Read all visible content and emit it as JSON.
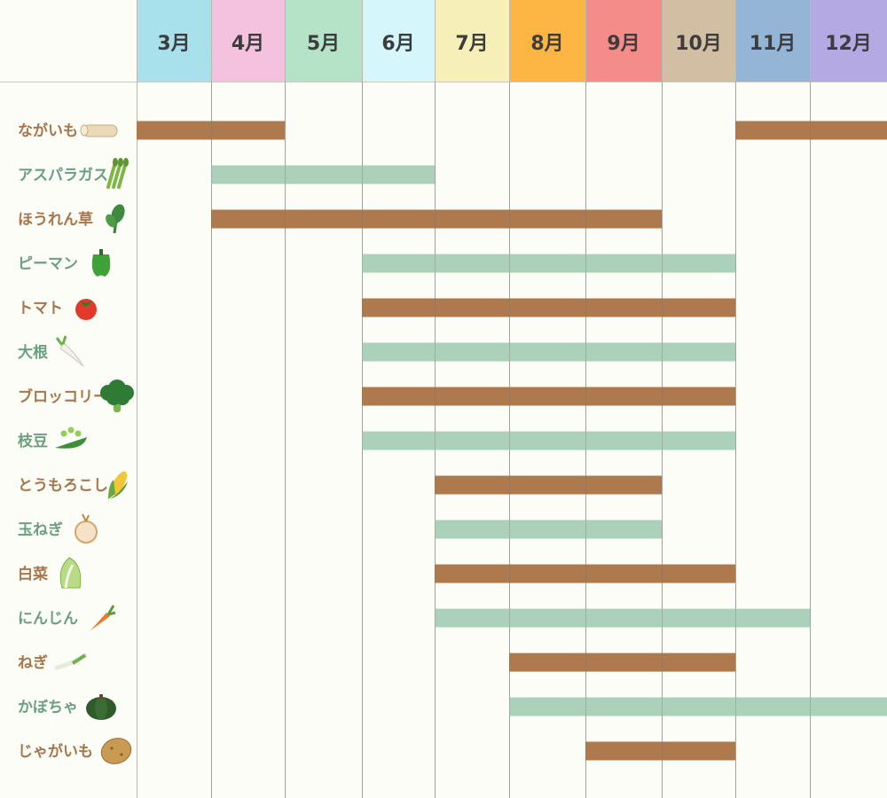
{
  "chart_data": {
    "type": "table",
    "months": [
      "3月",
      "4月",
      "5月",
      "6月",
      "7月",
      "8月",
      "9月",
      "10月",
      "11月",
      "12月"
    ],
    "month_colors": [
      "#a8e0ec",
      "#f4c2de",
      "#b5e3c8",
      "#d5f6fb",
      "#f7efb8",
      "#fdb643",
      "#f48c8a",
      "#d2bfa3",
      "#94b5d6",
      "#b4a9e2"
    ],
    "bar_colors": [
      "#ae7a4d",
      "#acd1bb"
    ],
    "label_colors": [
      "#a9754a",
      "#6aa07f"
    ],
    "rows": [
      {
        "name": "ながいも",
        "icon": "nagaimo-icon",
        "ranges": [
          [
            3,
            4
          ],
          [
            11,
            12
          ]
        ]
      },
      {
        "name": "アスパラガス",
        "icon": "asparagus-icon",
        "ranges": [
          [
            4,
            6
          ]
        ]
      },
      {
        "name": "ほうれん草",
        "icon": "spinach-icon",
        "ranges": [
          [
            4,
            9
          ]
        ]
      },
      {
        "name": "ピーマン",
        "icon": "green-pepper-icon",
        "ranges": [
          [
            6,
            10
          ]
        ]
      },
      {
        "name": "トマト",
        "icon": "tomato-icon",
        "ranges": [
          [
            6,
            10
          ]
        ]
      },
      {
        "name": "大根",
        "icon": "daikon-icon",
        "ranges": [
          [
            6,
            10
          ]
        ]
      },
      {
        "name": "ブロッコリー",
        "icon": "broccoli-icon",
        "ranges": [
          [
            6,
            10
          ]
        ]
      },
      {
        "name": "枝豆",
        "icon": "edamame-icon",
        "ranges": [
          [
            6,
            10
          ]
        ]
      },
      {
        "name": "とうもろこし",
        "icon": "corn-icon",
        "ranges": [
          [
            7,
            9
          ]
        ]
      },
      {
        "name": "玉ねぎ",
        "icon": "onion-icon",
        "ranges": [
          [
            7,
            9
          ]
        ]
      },
      {
        "name": "白菜",
        "icon": "chinese-cabbage-icon",
        "ranges": [
          [
            7,
            10
          ]
        ]
      },
      {
        "name": "にんじん",
        "icon": "carrot-icon",
        "ranges": [
          [
            7,
            11
          ]
        ]
      },
      {
        "name": "ねぎ",
        "icon": "green-onion-icon",
        "ranges": [
          [
            8,
            10
          ]
        ]
      },
      {
        "name": "かぼちゃ",
        "icon": "pumpkin-icon",
        "ranges": [
          [
            8,
            12
          ]
        ]
      },
      {
        "name": "じゃがいも",
        "icon": "potato-icon",
        "ranges": [
          [
            9,
            10
          ]
        ]
      }
    ]
  }
}
